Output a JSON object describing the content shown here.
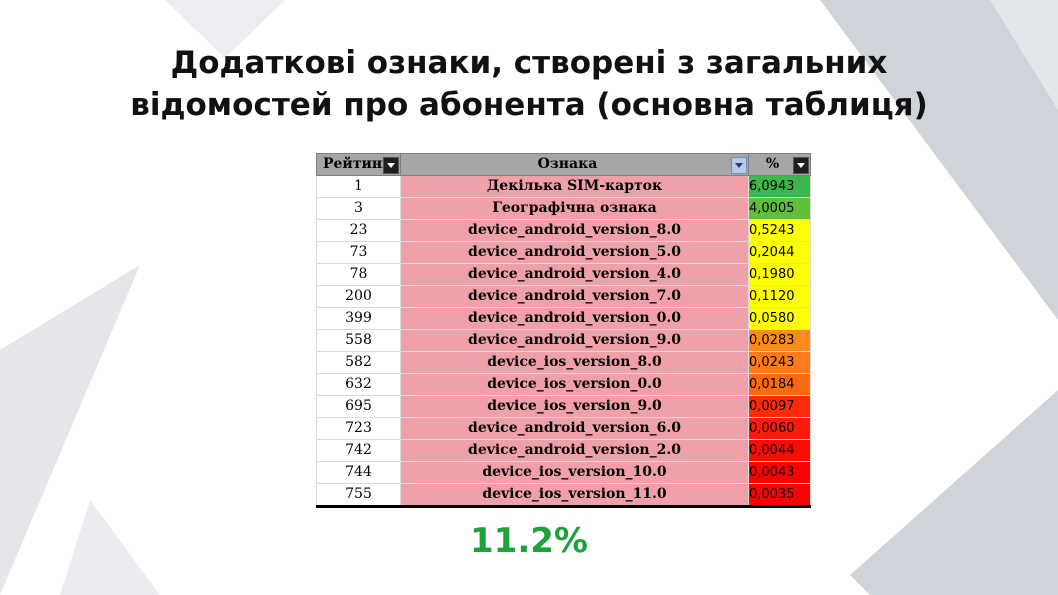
{
  "title_lines": [
    "Додаткові ознаки, створені з загальних",
    "відомостей про абонента (основна таблиця)"
  ],
  "table": {
    "headers": {
      "rank": "Рейтинг",
      "feature": "Ознака",
      "percent": "%"
    },
    "rows": [
      {
        "rank": "1",
        "feature": "Декілька SIM-карток",
        "percent": "6,0943",
        "color": "#3cb84a"
      },
      {
        "rank": "3",
        "feature": "Географічна ознака",
        "percent": "4,0005",
        "color": "#5dbf3a"
      },
      {
        "rank": "23",
        "feature": "device_android_version_8.0",
        "percent": "0,5243",
        "color": "#ffff00"
      },
      {
        "rank": "73",
        "feature": "device_android_version_5.0",
        "percent": "0,2044",
        "color": "#ffff00"
      },
      {
        "rank": "78",
        "feature": "device_android_version_4.0",
        "percent": "0,1980",
        "color": "#ffff00"
      },
      {
        "rank": "200",
        "feature": "device_android_version_7.0",
        "percent": "0,1120",
        "color": "#ffff00"
      },
      {
        "rank": "399",
        "feature": "device_android_version_0.0",
        "percent": "0,0580",
        "color": "#ffff00"
      },
      {
        "rank": "558",
        "feature": "device_android_version_9.0",
        "percent": "0,0283",
        "color": "#ff8c1a"
      },
      {
        "rank": "582",
        "feature": "device_ios_version_8.0",
        "percent": "0,0243",
        "color": "#ff7a1a"
      },
      {
        "rank": "632",
        "feature": "device_ios_version_0.0",
        "percent": "0,0184",
        "color": "#ff6a10"
      },
      {
        "rank": "695",
        "feature": "device_ios_version_9.0",
        "percent": "0,0097",
        "color": "#ff2a0a"
      },
      {
        "rank": "723",
        "feature": "device_android_version_6.0",
        "percent": "0,0060",
        "color": "#ff1a0a"
      },
      {
        "rank": "742",
        "feature": "device_android_version_2.0",
        "percent": "0,0044",
        "color": "#ff0a00"
      },
      {
        "rank": "744",
        "feature": "device_ios_version_10.0",
        "percent": "0,0043",
        "color": "#ff0000"
      },
      {
        "rank": "755",
        "feature": "device_ios_version_11.0",
        "percent": "0,0035",
        "color": "#ff0000"
      }
    ]
  },
  "total": "11.2%"
}
